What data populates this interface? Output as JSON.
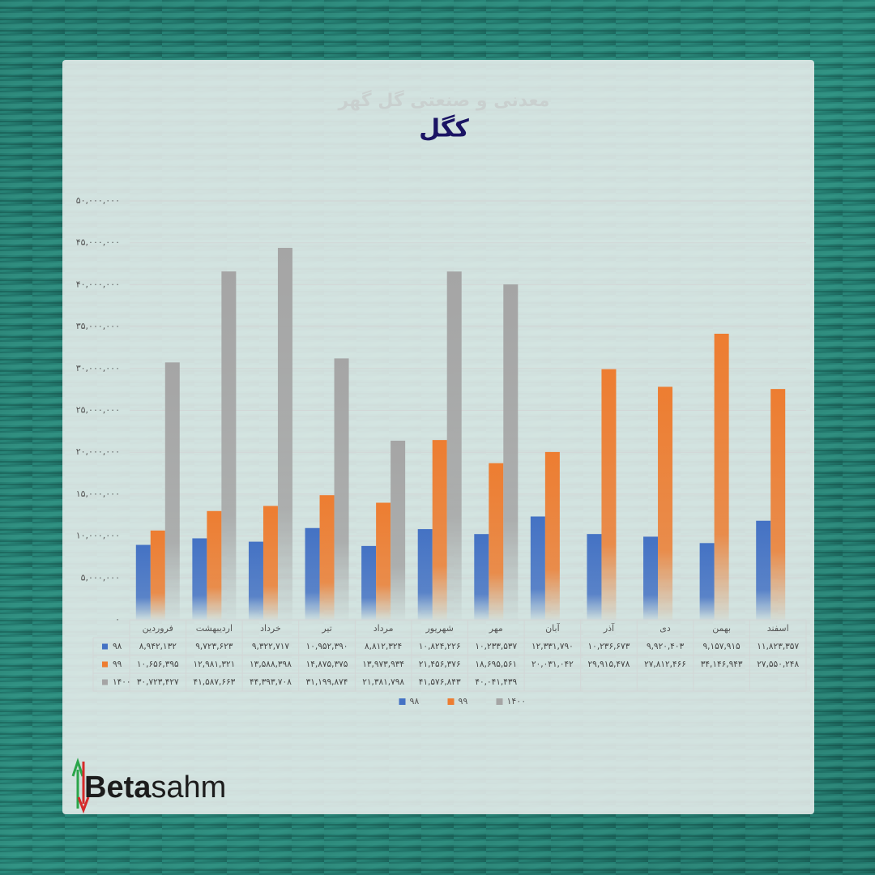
{
  "chart_data": {
    "type": "bar",
    "title": "کگل",
    "subtitle": "معدنی و صنعتی گل گهر",
    "categories": [
      "فروردین",
      "اردیبهشت",
      "خرداد",
      "تیر",
      "مرداد",
      "شهریور",
      "مهر",
      "آبان",
      "آذر",
      "دی",
      "بهمن",
      "اسفند"
    ],
    "series": [
      {
        "name": "۹۸",
        "color": "#4472c4",
        "values": [
          8942132,
          9723623,
          9322717,
          10952390,
          8812324,
          10824226,
          10233537,
          12331790,
          10236673,
          9920403,
          9157915,
          11823357
        ],
        "value_labels": [
          "۸,۹۴۲,۱۳۲",
          "۹,۷۲۳,۶۲۳",
          "۹,۳۲۲,۷۱۷",
          "۱۰,۹۵۲,۳۹۰",
          "۸,۸۱۲,۳۲۴",
          "۱۰,۸۲۴,۲۲۶",
          "۱۰,۲۳۳,۵۳۷",
          "۱۲,۳۳۱,۷۹۰",
          "۱۰,۲۳۶,۶۷۳",
          "۹,۹۲۰,۴۰۳",
          "۹,۱۵۷,۹۱۵",
          "۱۱,۸۲۳,۳۵۷"
        ]
      },
      {
        "name": "۹۹",
        "color": "#ed7d31",
        "values": [
          10656395,
          12981321,
          13588398,
          14875375,
          13973934,
          21456376,
          18695561,
          20031042,
          29915478,
          27812466,
          34146943,
          27550248
        ],
        "value_labels": [
          "۱۰,۶۵۶,۳۹۵",
          "۱۲,۹۸۱,۳۲۱",
          "۱۳,۵۸۸,۳۹۸",
          "۱۴,۸۷۵,۳۷۵",
          "۱۳,۹۷۳,۹۳۴",
          "۲۱,۴۵۶,۳۷۶",
          "۱۸,۶۹۵,۵۶۱",
          "۲۰,۰۳۱,۰۴۲",
          "۲۹,۹۱۵,۴۷۸",
          "۲۷,۸۱۲,۴۶۶",
          "۳۴,۱۴۶,۹۴۳",
          "۲۷,۵۵۰,۲۴۸"
        ]
      },
      {
        "name": "۱۴۰۰",
        "color": "#a5a5a5",
        "values": [
          30723427,
          41587663,
          44393708,
          31199874,
          21381798,
          41576843,
          40041439,
          null,
          null,
          null,
          null,
          null
        ],
        "value_labels": [
          "۳۰,۷۲۳,۴۲۷",
          "۴۱,۵۸۷,۶۶۳",
          "۴۴,۳۹۳,۷۰۸",
          "۳۱,۱۹۹,۸۷۴",
          "۲۱,۳۸۱,۷۹۸",
          "۴۱,۵۷۶,۸۴۳",
          "۴۰,۰۴۱,۴۳۹",
          null,
          null,
          null,
          null,
          null
        ]
      }
    ],
    "ylim": [
      0,
      50000000
    ],
    "yticks": [
      {
        "value": 0,
        "label": "۰"
      },
      {
        "value": 5000000,
        "label": "۵,۰۰۰,۰۰۰"
      },
      {
        "value": 10000000,
        "label": "۱۰,۰۰۰,۰۰۰"
      },
      {
        "value": 15000000,
        "label": "۱۵,۰۰۰,۰۰۰"
      },
      {
        "value": 20000000,
        "label": "۲۰,۰۰۰,۰۰۰"
      },
      {
        "value": 25000000,
        "label": "۲۵,۰۰۰,۰۰۰"
      },
      {
        "value": 30000000,
        "label": "۳۰,۰۰۰,۰۰۰"
      },
      {
        "value": 35000000,
        "label": "۳۵,۰۰۰,۰۰۰"
      },
      {
        "value": 40000000,
        "label": "۴۰,۰۰۰,۰۰۰"
      },
      {
        "value": 45000000,
        "label": "۴۵,۰۰۰,۰۰۰"
      },
      {
        "value": 50000000,
        "label": "۵۰,۰۰۰,۰۰۰"
      }
    ],
    "grid": true,
    "legend": "bottom",
    "data_table": true
  },
  "brand": [
    "Beta",
    "sahm"
  ]
}
